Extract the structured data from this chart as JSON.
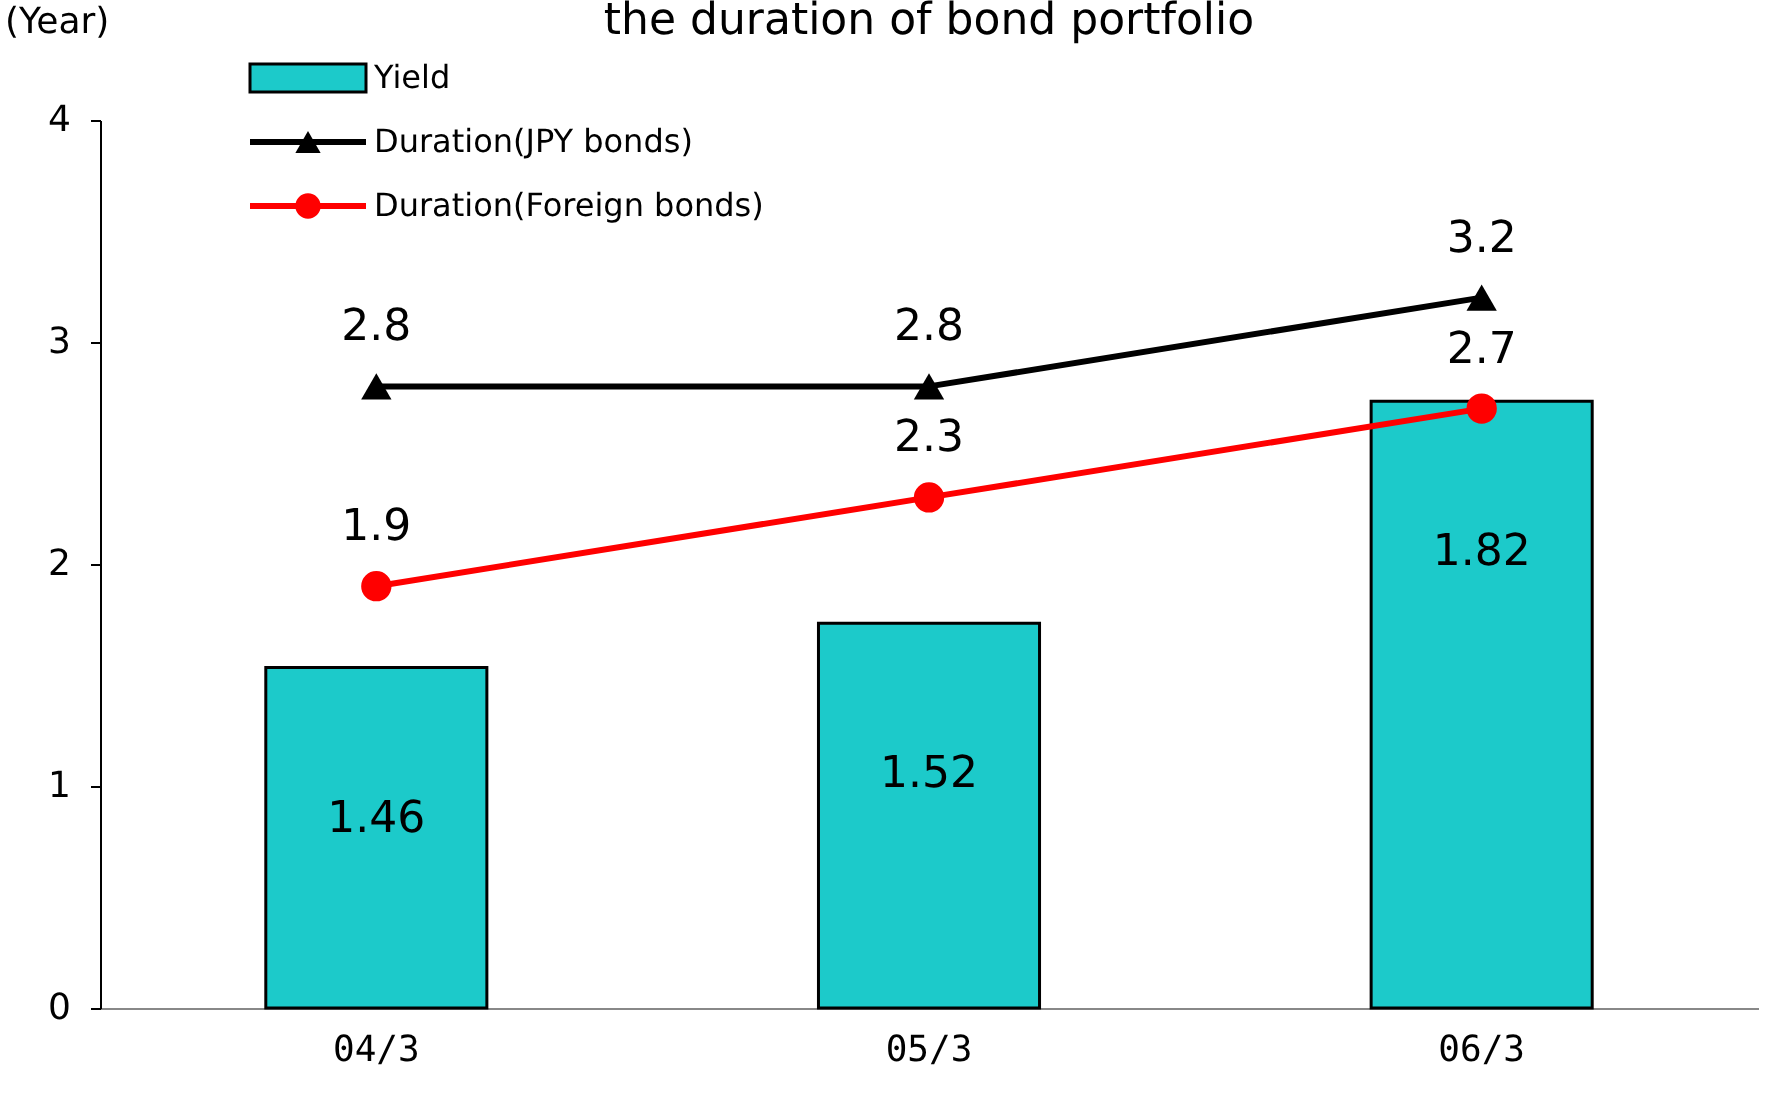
{
  "chart_data": {
    "type": "bar",
    "title": "the duration of bond portfolio",
    "ylabel": "(Year)",
    "categories": [
      "04/3",
      "05/3",
      "06/3"
    ],
    "series": [
      {
        "name": "Yield",
        "axis": "y2",
        "color": "#1ccaca",
        "values": [
          1.46,
          1.52,
          1.82
        ]
      },
      {
        "name": "Duration(JPY bonds)",
        "type": "line",
        "marker": "triangle",
        "color": "#000000",
        "values": [
          2.8,
          2.8,
          3.2
        ]
      },
      {
        "name": "Duration(Foreign bonds)",
        "type": "line",
        "marker": "circle",
        "color": "#ff0000",
        "values": [
          1.9,
          2.3,
          2.7
        ]
      }
    ],
    "ylim": [
      0,
      4
    ],
    "yticks": [
      0,
      1,
      2,
      3,
      4
    ],
    "y2lim": [
      1.0,
      2.2
    ],
    "data_labels": true,
    "grid": false,
    "legend": "top left"
  }
}
